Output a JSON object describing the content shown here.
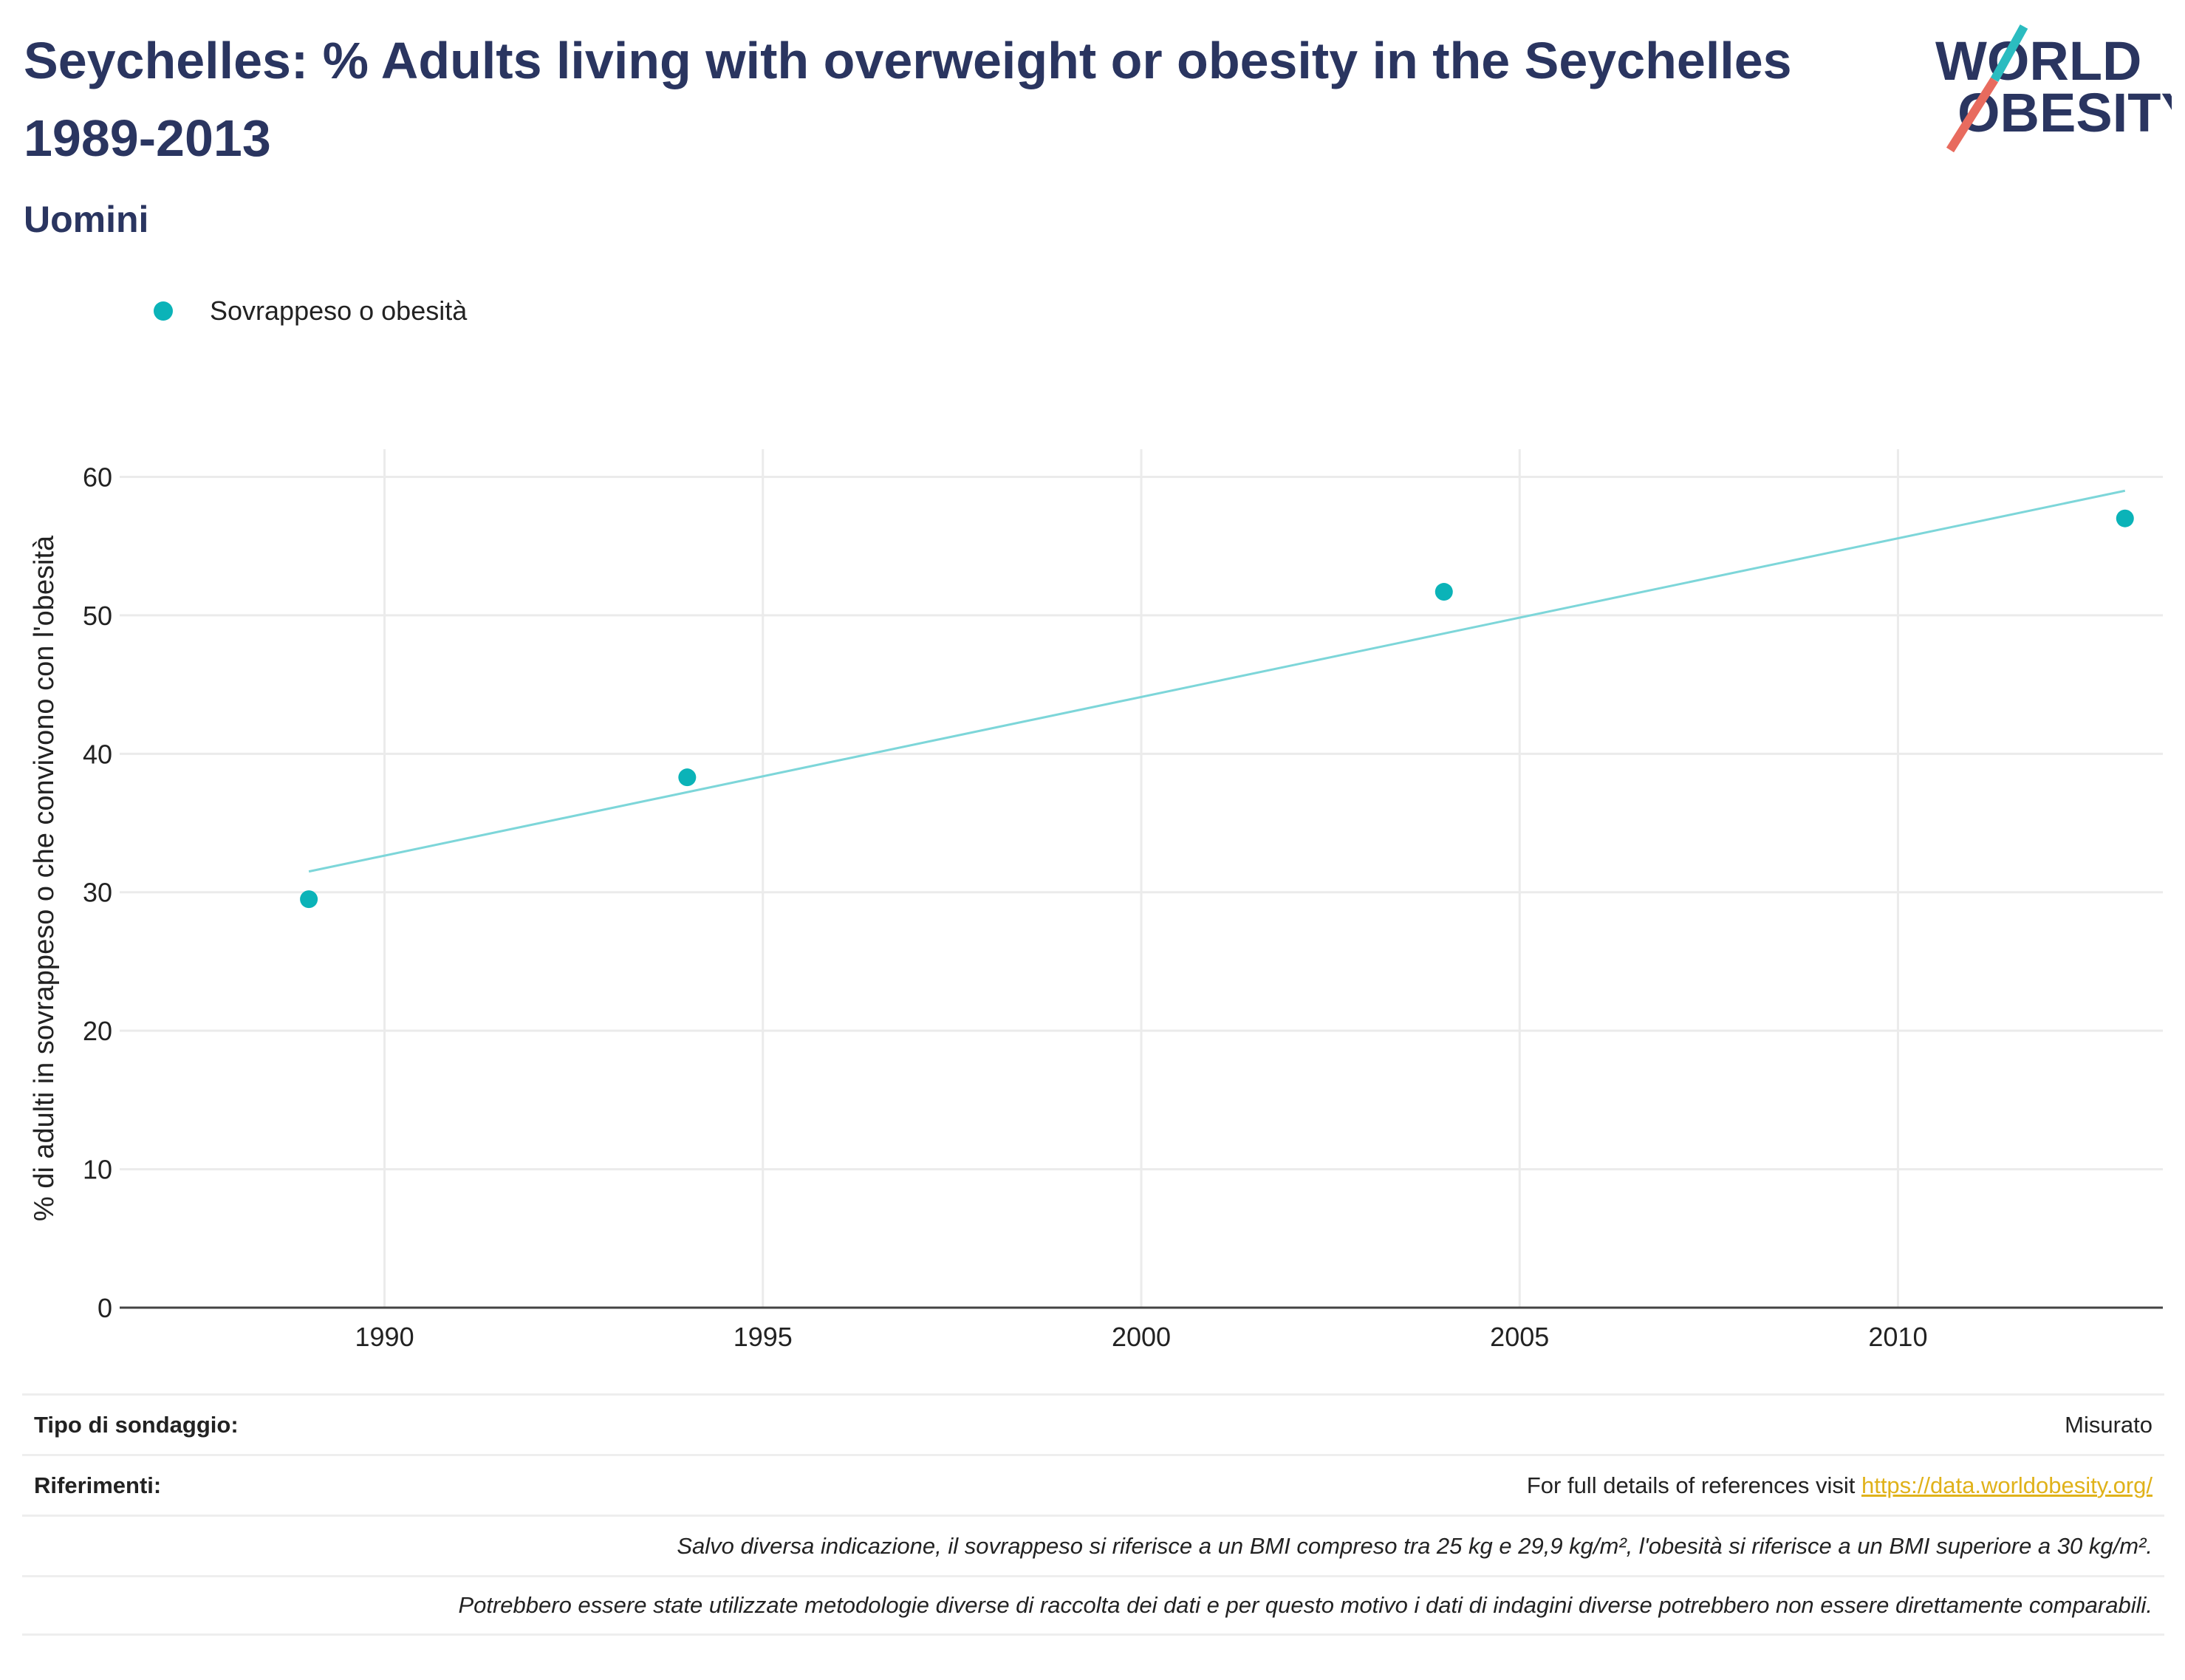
{
  "title": "Seychelles: % Adults living with overweight or obesity in the Seychelles 1989-2013",
  "subtitle": "Uomini",
  "logo": {
    "line1": "WORLD",
    "line2": "OBESITY",
    "accent_teal": "#2bbcc0",
    "accent_red": "#e86b5e",
    "text_color": "#2a3560"
  },
  "legend": {
    "label": "Sovrappeso o obesità",
    "color": "#0bb3b8"
  },
  "chart_data": {
    "type": "scatter",
    "title": "Seychelles: % Adults living with overweight or obesity in the Seychelles 1989-2013",
    "xlabel": "",
    "ylabel": "% di adulti in sovrappeso o che convivono con l'obesità",
    "xlim": [
      1986.5,
      2013.5
    ],
    "ylim": [
      0,
      62
    ],
    "x_ticks": [
      1990,
      1995,
      2000,
      2005,
      2010
    ],
    "y_ticks": [
      0,
      10,
      20,
      30,
      40,
      50,
      60
    ],
    "grid": true,
    "legend_position": "top-left",
    "series": [
      {
        "name": "Sovrappeso o obesità",
        "color": "#0bb3b8",
        "x": [
          1989,
          1994,
          2004,
          2013
        ],
        "y": [
          29.5,
          38.3,
          51.7,
          57.0
        ]
      }
    ],
    "trendline": {
      "color": "#7dd6d9",
      "x": [
        1989,
        2013
      ],
      "y": [
        31.5,
        59.0
      ]
    }
  },
  "info": {
    "survey_type_label": "Tipo di sondaggio:",
    "survey_type_value": "Misurato",
    "references_label": "Riferimenti:",
    "references_text": "For full details of references visit ",
    "references_link": "https://data.worldobesity.org/",
    "note1": "Salvo diversa indicazione, il sovrappeso si riferisce a un BMI compreso tra 25 kg e 29,9 kg/m², l'obesità si riferisce a un BMI superiore a 30 kg/m².",
    "note2": "Potrebbero essere state utilizzate metodologie diverse di raccolta dei dati e per questo motivo i dati di indagini diverse potrebbero non essere direttamente comparabili."
  }
}
